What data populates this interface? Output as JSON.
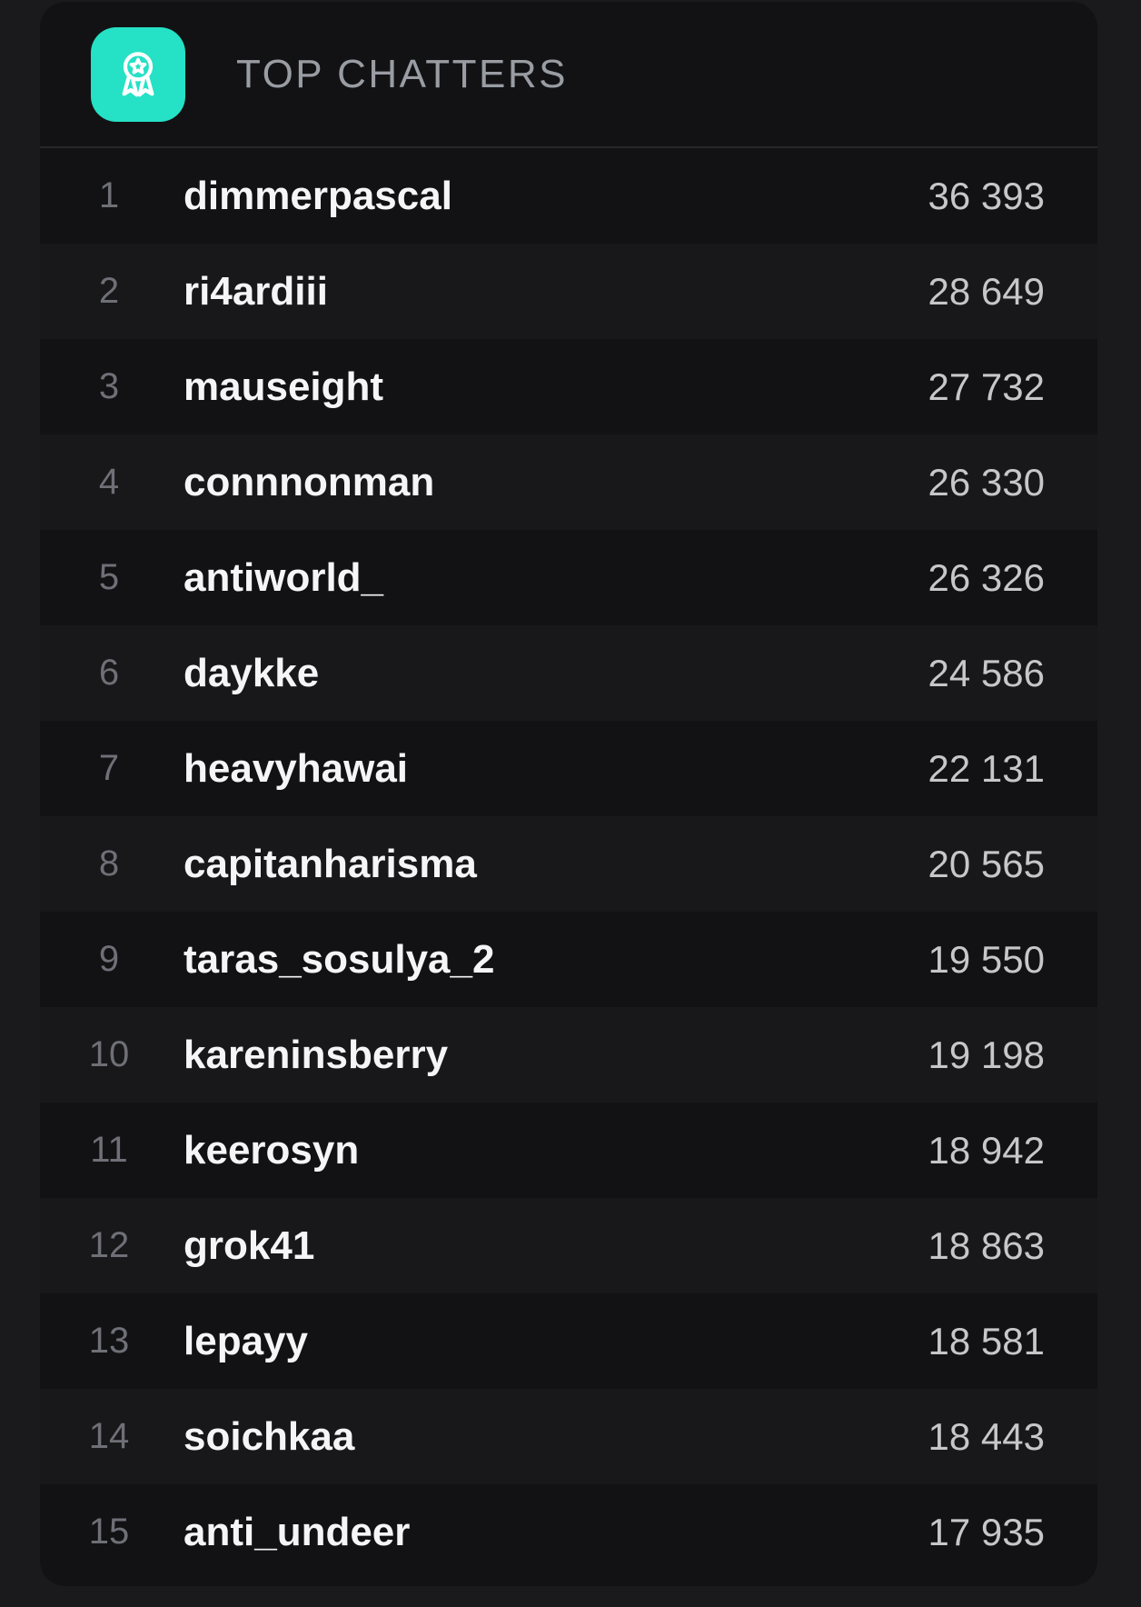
{
  "header": {
    "title": "TOP CHATTERS",
    "icon": "medal-icon"
  },
  "colors": {
    "page-bg": "#1a1a1d",
    "card-bg": "#121214",
    "row-alt": "rgba(255,255,255,0.028)",
    "divider": "rgba(255,255,255,0.09)",
    "rank": "#6f6f77",
    "username": "#f5f5f7",
    "count": "#c6c6cb",
    "title": "#999da3",
    "accent": "#25e1c5",
    "glyph": "#ffffff"
  },
  "leaderboard": {
    "rows": [
      {
        "rank": "1",
        "username": "dimmerpascal",
        "count": "36 393"
      },
      {
        "rank": "2",
        "username": "ri4ardiii",
        "count": "28 649"
      },
      {
        "rank": "3",
        "username": "mauseight",
        "count": "27 732"
      },
      {
        "rank": "4",
        "username": "connnonman",
        "count": "26 330"
      },
      {
        "rank": "5",
        "username": "antiworld_",
        "count": "26 326"
      },
      {
        "rank": "6",
        "username": "daykke",
        "count": "24 586"
      },
      {
        "rank": "7",
        "username": "heavyhawai",
        "count": "22 131"
      },
      {
        "rank": "8",
        "username": "capitanharisma",
        "count": "20 565"
      },
      {
        "rank": "9",
        "username": "taras_sosulya_2",
        "count": "19 550"
      },
      {
        "rank": "10",
        "username": "kareninsberry",
        "count": "19 198"
      },
      {
        "rank": "11",
        "username": "keerosyn",
        "count": "18 942"
      },
      {
        "rank": "12",
        "username": "grok41",
        "count": "18 863"
      },
      {
        "rank": "13",
        "username": "lepayy",
        "count": "18 581"
      },
      {
        "rank": "14",
        "username": "soichkaa",
        "count": "18 443"
      },
      {
        "rank": "15",
        "username": "anti_undeer",
        "count": "17 935"
      }
    ]
  }
}
